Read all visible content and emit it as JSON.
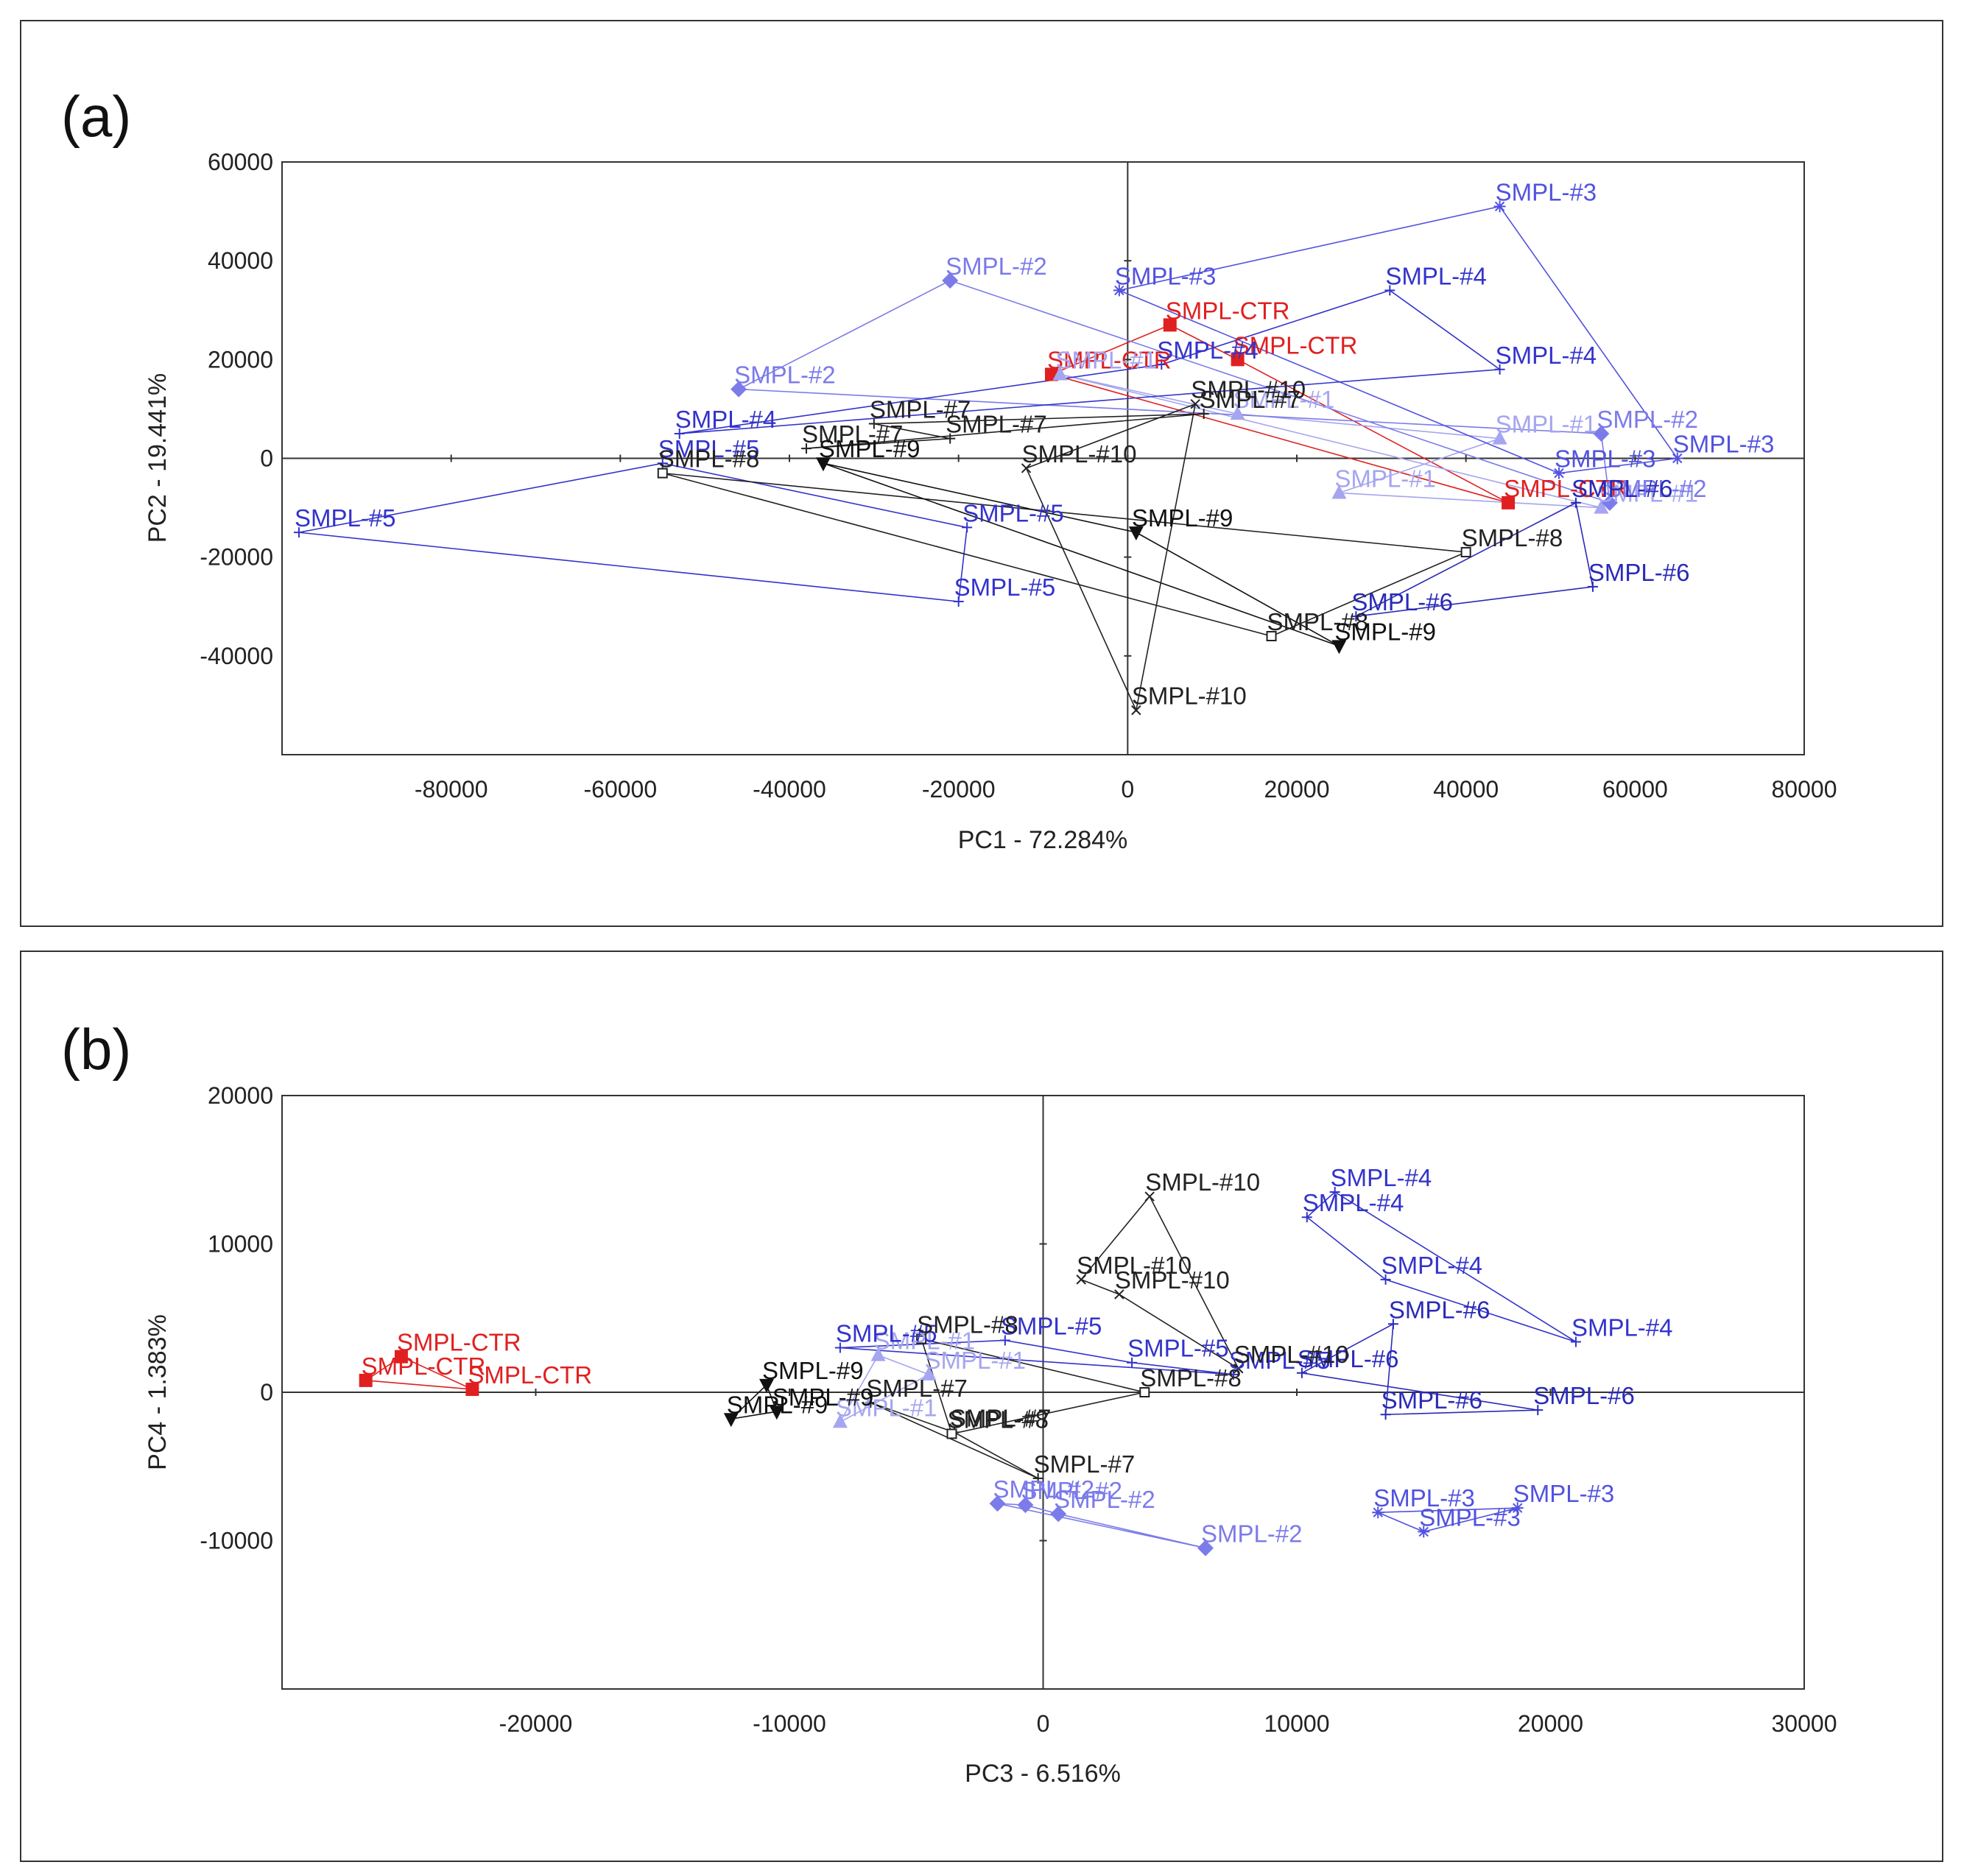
{
  "chart_data": [
    {
      "panel_label": "(a)",
      "type": "scatter",
      "xlabel": "PC1 - 72.284%",
      "ylabel": "PC2 - 19.441%",
      "xlim": [
        -100000,
        80000
      ],
      "ylim": [
        -60000,
        60000
      ],
      "xticks": [
        "-80000",
        "-60000",
        "-40000",
        "-20000",
        "0",
        "20000",
        "40000",
        "60000",
        "80000"
      ],
      "yticks": [
        "60000",
        "40000",
        "20000",
        "0",
        "-20000",
        "-40000"
      ],
      "series": [
        {
          "name": "SMPL-CTR",
          "color": "#e02020",
          "marker": "square",
          "points": [
            [
              -9000,
              17000
            ],
            [
              5000,
              27000
            ],
            [
              13000,
              20000
            ],
            [
              45000,
              -9000
            ]
          ],
          "labels": [
            "SMPL-CTR",
            "SMPL-CTR",
            "SMPL-CTR",
            "SMPL-CTR"
          ]
        },
        {
          "name": "SMPL-#1",
          "color": "#a5a5f0",
          "marker": "triangle",
          "points": [
            [
              -8000,
              17000
            ],
            [
              13000,
              9000
            ],
            [
              44000,
              4000
            ],
            [
              25000,
              -7000
            ],
            [
              56000,
              -10000
            ]
          ],
          "labels": [
            "SMPL-#1",
            "SMPL-#1",
            "SMPL-#1",
            "SMPL-#1",
            "SMPL-#1"
          ]
        },
        {
          "name": "SMPL-#2",
          "color": "#7b7bea",
          "marker": "diamond",
          "points": [
            [
              -21000,
              36000
            ],
            [
              -46000,
              14000
            ],
            [
              56000,
              5000
            ],
            [
              57000,
              -9000
            ]
          ],
          "labels": [
            "SMPL-#2",
            "SMPL-#2",
            "SMPL-#2",
            "SMPL-#2"
          ]
        },
        {
          "name": "SMPL-#3",
          "color": "#5252e0",
          "marker": "star",
          "points": [
            [
              -1000,
              34000
            ],
            [
              44000,
              51000
            ],
            [
              65000,
              0
            ],
            [
              51000,
              -3000
            ]
          ],
          "labels": [
            "SMPL-#3",
            "SMPL-#3",
            "SMPL-#3",
            "SMPL-#3"
          ]
        },
        {
          "name": "SMPL-#4",
          "color": "#3333cc",
          "marker": "plus",
          "points": [
            [
              31000,
              34000
            ],
            [
              44000,
              18000
            ],
            [
              -53000,
              5000
            ],
            [
              4000,
              19000
            ]
          ],
          "labels": [
            "SMPL-#4",
            "SMPL-#4",
            "SMPL-#4",
            "SMPL-#4"
          ]
        },
        {
          "name": "SMPL-#5",
          "color": "#3333cc",
          "marker": "plus",
          "points": [
            [
              -98000,
              -15000
            ],
            [
              -20000,
              -29000
            ],
            [
              -19000,
              -14000
            ],
            [
              -55000,
              -1000
            ]
          ],
          "labels": [
            "SMPL-#5",
            "SMPL-#5",
            "SMPL-#5",
            "SMPL-#5"
          ]
        },
        {
          "name": "SMPL-#6",
          "color": "#2a2ab8",
          "marker": "plus",
          "points": [
            [
              55000,
              -26000
            ],
            [
              53000,
              -9000
            ],
            [
              27000,
              -32000
            ]
          ],
          "labels": [
            "SMPL-#6",
            "SMPL-#6",
            "SMPL-#6"
          ]
        },
        {
          "name": "SMPL-#7",
          "color": "#222222",
          "marker": "plus",
          "points": [
            [
              -30000,
              7000
            ],
            [
              -21000,
              4000
            ],
            [
              -38000,
              2000
            ],
            [
              9000,
              9000
            ]
          ],
          "labels": [
            "SMPL-#7",
            "SMPL-#7",
            "SMPL-#7",
            "SMPL-#7"
          ]
        },
        {
          "name": "SMPL-#8",
          "color": "#222222",
          "marker": "square-open",
          "points": [
            [
              40000,
              -19000
            ],
            [
              17000,
              -36000
            ],
            [
              -55000,
              -3000
            ]
          ],
          "labels": [
            "SMPL-#8",
            "SMPL-#8",
            "SMPL-#8"
          ]
        },
        {
          "name": "SMPL-#9",
          "color": "#111111",
          "marker": "triangle-down",
          "points": [
            [
              1000,
              -15000
            ],
            [
              25000,
              -38000
            ],
            [
              -36000,
              -1000
            ]
          ],
          "labels": [
            "SMPL-#9",
            "SMPL-#9",
            "SMPL-#9"
          ]
        },
        {
          "name": "SMPL-#10",
          "color": "#222222",
          "marker": "x",
          "points": [
            [
              1000,
              -51000
            ],
            [
              8000,
              11000
            ],
            [
              -12000,
              -2000
            ]
          ],
          "labels": [
            "SMPL-#10",
            "SMPL-#10",
            "SMPL-#10"
          ]
        }
      ]
    },
    {
      "panel_label": "(b)",
      "type": "scatter",
      "xlabel": "PC3 - 6.516%",
      "ylabel": "PC4 - 1.383%",
      "xlim": [
        -30000,
        30000
      ],
      "ylim": [
        -20000,
        20000
      ],
      "xticks": [
        "-20000",
        "-10000",
        "0",
        "10000",
        "20000",
        "30000"
      ],
      "yticks": [
        "20000",
        "10000",
        "0",
        "-10000"
      ],
      "series": [
        {
          "name": "SMPL-CTR",
          "color": "#e02020",
          "marker": "square",
          "points": [
            [
              -26700,
              800
            ],
            [
              -25300,
              2400
            ],
            [
              -22500,
              200
            ]
          ],
          "labels": [
            "SMPL-CTR",
            "SMPL-CTR",
            "SMPL-CTR"
          ]
        },
        {
          "name": "SMPL-#1",
          "color": "#a5a5f0",
          "marker": "triangle",
          "points": [
            [
              -6500,
              2500
            ],
            [
              -4500,
              1200
            ],
            [
              -8000,
              -2000
            ]
          ],
          "labels": [
            "SMPL-#1",
            "SMPL-#1",
            "SMPL-#1"
          ]
        },
        {
          "name": "SMPL-#2",
          "color": "#7b7bea",
          "marker": "diamond",
          "points": [
            [
              -1800,
              -7500
            ],
            [
              -700,
              -7600
            ],
            [
              600,
              -8200
            ],
            [
              6400,
              -10500
            ]
          ],
          "labels": [
            "SMPL-#2",
            "SMPL-#2",
            "SMPL-#2",
            "SMPL-#2"
          ]
        },
        {
          "name": "SMPL-#3",
          "color": "#5252e0",
          "marker": "star",
          "points": [
            [
              13200,
              -8100
            ],
            [
              15000,
              -9400
            ],
            [
              18700,
              -7800
            ]
          ],
          "labels": [
            "SMPL-#3",
            "SMPL-#3",
            "SMPL-#3"
          ]
        },
        {
          "name": "SMPL-#4",
          "color": "#3333cc",
          "marker": "plus",
          "points": [
            [
              11500,
              13500
            ],
            [
              10400,
              11800
            ],
            [
              13500,
              7600
            ],
            [
              21000,
              3400
            ]
          ],
          "labels": [
            "SMPL-#4",
            "SMPL-#4",
            "SMPL-#4",
            "SMPL-#4"
          ]
        },
        {
          "name": "SMPL-#5",
          "color": "#3333cc",
          "marker": "plus",
          "points": [
            [
              -8000,
              3000
            ],
            [
              -1500,
              3500
            ],
            [
              3500,
              2000
            ],
            [
              7500,
              1200
            ]
          ],
          "labels": [
            "SMPL-#5",
            "SMPL-#5",
            "SMPL-#5",
            "SMPL-#5"
          ]
        },
        {
          "name": "SMPL-#6",
          "color": "#2a2ab8",
          "marker": "plus",
          "points": [
            [
              13800,
              4600
            ],
            [
              10200,
              1300
            ],
            [
              19500,
              -1200
            ],
            [
              13500,
              -1500
            ]
          ],
          "labels": [
            "SMPL-#6",
            "SMPL-#6",
            "SMPL-#6",
            "SMPL-#6"
          ]
        },
        {
          "name": "SMPL-#7",
          "color": "#222222",
          "marker": "plus",
          "points": [
            [
              -6800,
              -700
            ],
            [
              -3500,
              -2700
            ],
            [
              -200,
              -5800
            ]
          ],
          "labels": [
            "SMPL-#7",
            "SMPL-#7",
            "SMPL-#7"
          ]
        },
        {
          "name": "SMPL-#8",
          "color": "#222222",
          "marker": "square-open",
          "points": [
            [
              -4800,
              3600
            ],
            [
              4000,
              0
            ],
            [
              -3600,
              -2800
            ]
          ],
          "labels": [
            "SMPL-#8",
            "SMPL-#8",
            "SMPL-#8"
          ]
        },
        {
          "name": "SMPL-#9",
          "color": "#111111",
          "marker": "triangle-down",
          "points": [
            [
              -12300,
              -1800
            ],
            [
              -10500,
              -1300
            ],
            [
              -10900,
              500
            ]
          ],
          "labels": [
            "SMPL-#9",
            "SMPL-#9",
            "SMPL-#9"
          ]
        },
        {
          "name": "SMPL-#10",
          "color": "#222222",
          "marker": "x",
          "points": [
            [
              4200,
              13200
            ],
            [
              1500,
              7600
            ],
            [
              3000,
              6600
            ],
            [
              7700,
              1600
            ]
          ],
          "labels": [
            "SMPL-#10",
            "SMPL-#10",
            "SMPL-#10",
            "SMPL-#10"
          ]
        }
      ]
    }
  ]
}
